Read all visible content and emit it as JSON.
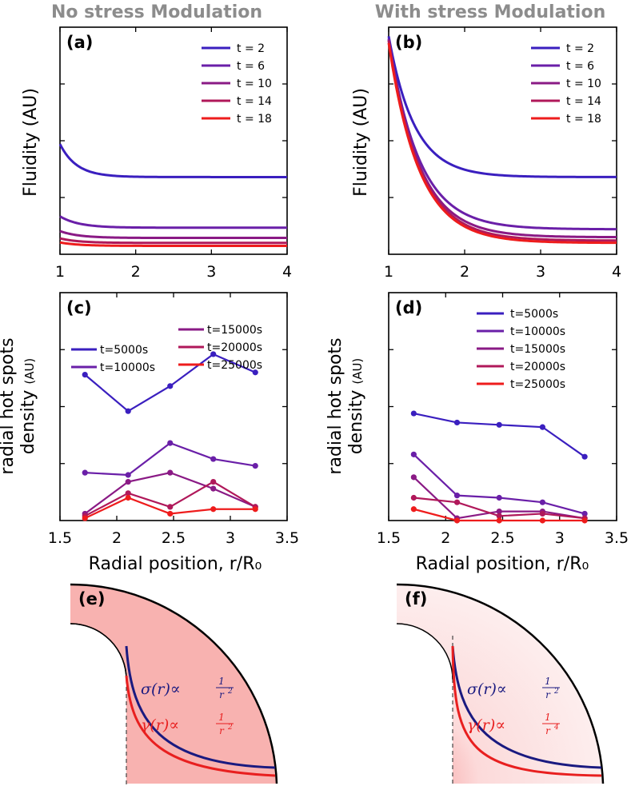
{
  "columns": {
    "left_title": "No stress Modulation",
    "right_title": "With stress Modulation"
  },
  "chart_data": [
    {
      "panel": "(a)",
      "type": "line",
      "title": "",
      "xlabel": "",
      "ylabel": "Fluidity (AU)",
      "xlim": [
        1,
        4
      ],
      "ylim": [
        0,
        1
      ],
      "x_ticks": [
        1,
        2,
        3,
        4
      ],
      "y_ticks_unlabeled": [
        0.25,
        0.5,
        0.75
      ],
      "legend_position": "top-right",
      "series": [
        {
          "name": "t = 2",
          "color": "#3a1fbf",
          "form": "decay",
          "x0": 1,
          "x1": 4,
          "base": 0.34,
          "amp": 0.145,
          "tau": 0.22
        },
        {
          "name": "t = 6",
          "color": "#6a1fa8",
          "form": "decay",
          "x0": 1,
          "x1": 4,
          "base": 0.117,
          "amp": 0.05,
          "tau": 0.25
        },
        {
          "name": "t = 10",
          "color": "#8a1a85",
          "form": "decay",
          "x0": 1,
          "x1": 4,
          "base": 0.072,
          "amp": 0.03,
          "tau": 0.25
        },
        {
          "name": "t = 14",
          "color": "#b0185a",
          "form": "decay",
          "x0": 1,
          "x1": 4,
          "base": 0.05,
          "amp": 0.02,
          "tau": 0.25
        },
        {
          "name": "t = 18",
          "color": "#ee1c1c",
          "form": "decay",
          "x0": 1,
          "x1": 4,
          "base": 0.037,
          "amp": 0.015,
          "tau": 0.25
        }
      ]
    },
    {
      "panel": "(b)",
      "type": "line",
      "title": "",
      "xlabel": "",
      "ylabel": "Fluidity (AU)",
      "xlim": [
        1,
        4
      ],
      "ylim": [
        0,
        1
      ],
      "x_ticks": [
        1,
        2,
        3,
        4
      ],
      "y_ticks_unlabeled": [
        0.25,
        0.5,
        0.75
      ],
      "legend_position": "top-right",
      "series": [
        {
          "name": "t = 2",
          "color": "#3a1fbf",
          "form": "decay",
          "x0": 1,
          "x1": 4,
          "base": 0.34,
          "amp": 0.62,
          "tau": 0.34
        },
        {
          "name": "t = 6",
          "color": "#6a1fa8",
          "form": "decay",
          "x0": 1,
          "x1": 4,
          "base": 0.11,
          "amp": 0.84,
          "tau": 0.4
        },
        {
          "name": "t = 10",
          "color": "#8a1a85",
          "form": "decay",
          "x0": 1,
          "x1": 4,
          "base": 0.075,
          "amp": 0.87,
          "tau": 0.4
        },
        {
          "name": "t = 14",
          "color": "#b0185a",
          "form": "decay",
          "x0": 1,
          "x1": 4,
          "base": 0.06,
          "amp": 0.88,
          "tau": 0.4
        },
        {
          "name": "t = 18",
          "color": "#ee1c1c",
          "form": "decay",
          "x0": 1,
          "x1": 4,
          "base": 0.05,
          "amp": 0.88,
          "tau": 0.4
        }
      ]
    },
    {
      "panel": "(c)",
      "type": "line",
      "title": "",
      "xlabel": "Radial position, r/R₀",
      "ylabel": "radial hot spots density (AU)",
      "xlim": [
        1.5,
        3.5
      ],
      "ylim": [
        0,
        1
      ],
      "x_ticks": [
        1.5,
        2,
        2.5,
        3,
        3.5
      ],
      "y_ticks_unlabeled": [
        0.25,
        0.5,
        0.75
      ],
      "legend_position": "top",
      "series": [
        {
          "name": "t=5000s",
          "color": "#3a1fbf",
          "x": [
            1.72,
            2.1,
            2.47,
            2.85,
            3.22
          ],
          "y": [
            0.64,
            0.48,
            0.59,
            0.73,
            0.65
          ]
        },
        {
          "name": "t=10000s",
          "color": "#6a1fa8",
          "x": [
            1.72,
            2.1,
            2.47,
            2.85,
            3.22
          ],
          "y": [
            0.21,
            0.2,
            0.34,
            0.27,
            0.24
          ]
        },
        {
          "name": "t=15000s",
          "color": "#8a1a85",
          "x": [
            1.72,
            2.1,
            2.47,
            2.85,
            3.22
          ],
          "y": [
            0.03,
            0.17,
            0.21,
            0.14,
            0.06
          ]
        },
        {
          "name": "t=20000s",
          "color": "#b0185a",
          "x": [
            1.72,
            2.1,
            2.47,
            2.85,
            3.22
          ],
          "y": [
            0.02,
            0.12,
            0.06,
            0.17,
            0.06
          ]
        },
        {
          "name": "t=25000s",
          "color": "#ee1c1c",
          "x": [
            1.72,
            2.1,
            2.47,
            2.85,
            3.22
          ],
          "y": [
            0.01,
            0.1,
            0.03,
            0.05,
            0.05
          ]
        }
      ]
    },
    {
      "panel": "(d)",
      "type": "line",
      "title": "",
      "xlabel": "Radial position, r/R₀",
      "ylabel": "radial hot spots density (AU)",
      "xlim": [
        1.5,
        3.5
      ],
      "ylim": [
        0,
        1
      ],
      "x_ticks": [
        1.5,
        2,
        2.5,
        3,
        3.5
      ],
      "y_ticks_unlabeled": [
        0.25,
        0.5,
        0.75
      ],
      "legend_position": "top-right",
      "series": [
        {
          "name": "t=5000s",
          "color": "#3a1fbf",
          "x": [
            1.72,
            2.1,
            2.47,
            2.85,
            3.22
          ],
          "y": [
            0.47,
            0.43,
            0.42,
            0.41,
            0.28
          ]
        },
        {
          "name": "t=10000s",
          "color": "#6a1fa8",
          "x": [
            1.72,
            2.1,
            2.47,
            2.85,
            3.22
          ],
          "y": [
            0.29,
            0.11,
            0.1,
            0.08,
            0.03
          ]
        },
        {
          "name": "t=15000s",
          "color": "#8a1a85",
          "x": [
            1.72,
            2.1,
            2.47,
            2.85,
            3.22
          ],
          "y": [
            0.19,
            0.01,
            0.04,
            0.04,
            0.01
          ]
        },
        {
          "name": "t=20000s",
          "color": "#b0185a",
          "x": [
            1.72,
            2.1,
            2.47,
            2.85,
            3.22
          ],
          "y": [
            0.1,
            0.08,
            0.02,
            0.03,
            0.01
          ]
        },
        {
          "name": "t=25000s",
          "color": "#ee1c1c",
          "x": [
            1.72,
            2.1,
            2.47,
            2.85,
            3.22
          ],
          "y": [
            0.05,
            0.0,
            0.0,
            0.0,
            0.0
          ]
        }
      ]
    }
  ],
  "diagrams": {
    "e": {
      "label": "(e)",
      "fill": "uniform-pink",
      "fill_color": "#f8b2b0",
      "sigma_formula": "σ(r)∝",
      "sigma_exp": "2",
      "gamma_formula": "γ(r)∝",
      "gamma_exp": "2",
      "sigma_color": "#1a1a80",
      "gamma_color": "#e81f1f"
    },
    "f": {
      "label": "(f)",
      "fill": "radial-gradient-pink",
      "fill_color": "#fde4e4",
      "sigma_formula": "σ(r)∝",
      "sigma_exp": "2",
      "gamma_formula": "γ(r)∝",
      "gamma_exp": "4",
      "sigma_color": "#1a1a80",
      "gamma_color": "#e81f1f"
    },
    "frac_numerator": "1",
    "frac_base": "r"
  }
}
